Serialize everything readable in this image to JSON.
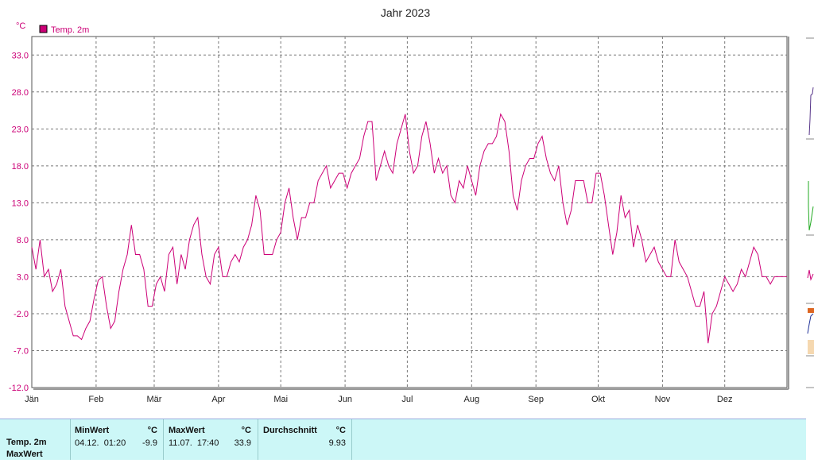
{
  "chart_data": {
    "type": "line",
    "title": "Jahr 2023",
    "ylabel": "°C",
    "legend": "Temp. 2m",
    "legend_placement": "top-left",
    "grid": true,
    "ylim": [
      -12.0,
      35.5
    ],
    "yticks": [
      "33.0",
      "28.0",
      "23.0",
      "18.0",
      "13.0",
      "8.0",
      "3.0",
      "-2.0",
      "-7.0",
      "-12.0"
    ],
    "months": [
      "Jän",
      "Feb",
      "Mär",
      "Apr",
      "Mai",
      "Jun",
      "Jul",
      "Aug",
      "Sep",
      "Okt",
      "Nov",
      "Dez"
    ],
    "line_color": "#cc0077",
    "series": [
      {
        "name": "Temp. 2m",
        "points": [
          [
            0,
            7
          ],
          [
            2,
            4
          ],
          [
            4,
            8
          ],
          [
            6,
            3
          ],
          [
            8,
            4
          ],
          [
            10,
            1
          ],
          [
            12,
            2
          ],
          [
            14,
            4
          ],
          [
            16,
            -1
          ],
          [
            18,
            -3
          ],
          [
            20,
            -5
          ],
          [
            22,
            -5
          ],
          [
            24,
            -5.5
          ],
          [
            26,
            -4
          ],
          [
            28,
            -3
          ],
          [
            30,
            0
          ],
          [
            32,
            2.5
          ],
          [
            34,
            3
          ],
          [
            36,
            -1
          ],
          [
            38,
            -4
          ],
          [
            40,
            -3
          ],
          [
            42,
            1
          ],
          [
            44,
            4
          ],
          [
            46,
            6
          ],
          [
            48,
            10
          ],
          [
            50,
            6
          ],
          [
            52,
            6
          ],
          [
            54,
            4
          ],
          [
            56,
            -1
          ],
          [
            58,
            -1
          ],
          [
            60,
            2
          ],
          [
            62,
            3
          ],
          [
            64,
            1
          ],
          [
            66,
            6
          ],
          [
            68,
            7
          ],
          [
            70,
            2
          ],
          [
            72,
            6
          ],
          [
            74,
            4
          ],
          [
            76,
            8
          ],
          [
            78,
            10
          ],
          [
            80,
            11
          ],
          [
            82,
            6
          ],
          [
            84,
            3
          ],
          [
            86,
            2
          ],
          [
            88,
            6
          ],
          [
            90,
            7
          ],
          [
            92,
            3
          ],
          [
            94,
            3
          ],
          [
            96,
            5
          ],
          [
            98,
            6
          ],
          [
            100,
            5
          ],
          [
            102,
            7
          ],
          [
            104,
            8
          ],
          [
            106,
            10
          ],
          [
            108,
            14
          ],
          [
            110,
            12
          ],
          [
            112,
            6
          ],
          [
            114,
            6
          ],
          [
            116,
            6
          ],
          [
            118,
            8
          ],
          [
            120,
            9
          ],
          [
            122,
            13
          ],
          [
            124,
            15
          ],
          [
            126,
            11
          ],
          [
            128,
            8
          ],
          [
            130,
            11
          ],
          [
            132,
            11
          ],
          [
            134,
            13
          ],
          [
            136,
            13
          ],
          [
            138,
            16
          ],
          [
            140,
            17
          ],
          [
            142,
            18
          ],
          [
            144,
            15
          ],
          [
            146,
            16
          ],
          [
            148,
            17
          ],
          [
            150,
            17
          ],
          [
            152,
            15
          ],
          [
            154,
            17
          ],
          [
            156,
            18
          ],
          [
            158,
            19
          ],
          [
            160,
            22
          ],
          [
            162,
            24
          ],
          [
            164,
            24
          ],
          [
            166,
            16
          ],
          [
            168,
            18
          ],
          [
            170,
            20
          ],
          [
            172,
            18
          ],
          [
            174,
            17
          ],
          [
            176,
            21
          ],
          [
            178,
            23
          ],
          [
            180,
            25
          ],
          [
            182,
            20
          ],
          [
            184,
            17
          ],
          [
            186,
            18
          ],
          [
            188,
            22
          ],
          [
            190,
            24
          ],
          [
            192,
            21
          ],
          [
            194,
            17
          ],
          [
            196,
            19
          ],
          [
            198,
            17
          ],
          [
            200,
            18
          ],
          [
            202,
            14
          ],
          [
            204,
            13
          ],
          [
            206,
            16
          ],
          [
            208,
            15
          ],
          [
            210,
            18
          ],
          [
            212,
            16
          ],
          [
            214,
            14
          ],
          [
            216,
            18
          ],
          [
            218,
            20
          ],
          [
            220,
            21
          ],
          [
            222,
            21
          ],
          [
            224,
            22
          ],
          [
            226,
            25
          ],
          [
            228,
            24
          ],
          [
            230,
            20
          ],
          [
            232,
            14
          ],
          [
            234,
            12
          ],
          [
            236,
            16
          ],
          [
            238,
            18
          ],
          [
            240,
            19
          ],
          [
            242,
            19
          ],
          [
            244,
            21
          ],
          [
            246,
            22
          ],
          [
            248,
            19
          ],
          [
            250,
            17
          ],
          [
            252,
            16
          ],
          [
            254,
            18
          ],
          [
            256,
            13
          ],
          [
            258,
            10
          ],
          [
            260,
            12
          ],
          [
            262,
            16
          ],
          [
            264,
            16
          ],
          [
            266,
            16
          ],
          [
            268,
            13
          ],
          [
            270,
            13
          ],
          [
            272,
            17
          ],
          [
            274,
            17
          ],
          [
            276,
            14
          ],
          [
            278,
            10
          ],
          [
            280,
            6
          ],
          [
            282,
            9
          ],
          [
            284,
            14
          ],
          [
            286,
            11
          ],
          [
            288,
            12
          ],
          [
            290,
            7
          ],
          [
            292,
            10
          ],
          [
            294,
            8
          ],
          [
            296,
            5
          ],
          [
            298,
            6
          ],
          [
            300,
            7
          ],
          [
            302,
            5
          ],
          [
            304,
            4
          ],
          [
            306,
            3
          ],
          [
            308,
            3
          ],
          [
            310,
            8
          ],
          [
            312,
            5
          ],
          [
            314,
            4
          ],
          [
            316,
            3
          ],
          [
            318,
            1
          ],
          [
            320,
            -1
          ],
          [
            322,
            -1
          ],
          [
            324,
            1
          ],
          [
            326,
            -6
          ],
          [
            328,
            -2
          ],
          [
            330,
            -1
          ],
          [
            332,
            1
          ],
          [
            334,
            3
          ],
          [
            336,
            2
          ],
          [
            338,
            1
          ],
          [
            340,
            2
          ],
          [
            342,
            4
          ],
          [
            344,
            3
          ],
          [
            346,
            5
          ],
          [
            348,
            7
          ],
          [
            350,
            6
          ],
          [
            352,
            3
          ],
          [
            354,
            3
          ],
          [
            356,
            2
          ],
          [
            358,
            3
          ],
          [
            360,
            3
          ],
          [
            362,
            3
          ],
          [
            364,
            3
          ]
        ]
      }
    ]
  },
  "stats": {
    "row_label": "Temp. 2m",
    "row_sublabel": "MaxWert",
    "min_header": "MinWert",
    "min_unit": "°C",
    "min_time": "04.12.  01:20",
    "min_value": "-9.9",
    "max_header": "MaxWert",
    "max_unit": "°C",
    "max_time": "11.07.  17:40",
    "max_value": "33.9",
    "avg_header": "Durchschnitt",
    "avg_unit": "°C",
    "avg_value": "9.93"
  }
}
